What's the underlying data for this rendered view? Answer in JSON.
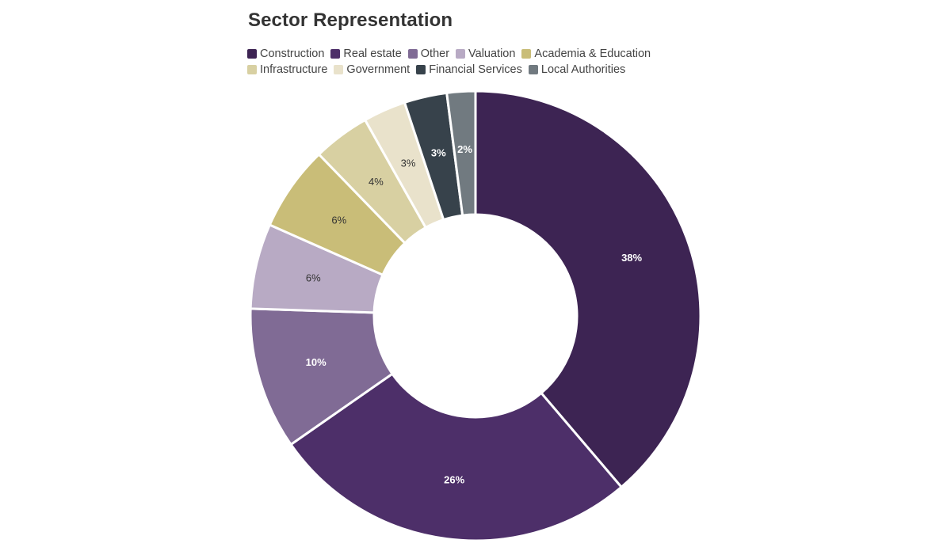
{
  "chart_data": {
    "type": "pie",
    "variant": "donut",
    "title": "Sector Representation",
    "legend_position": "top-left",
    "slices": [
      {
        "label": "Construction",
        "value": 38,
        "display": "38%",
        "color": "#3d2453",
        "text_color": "#ffffff",
        "bold": true
      },
      {
        "label": "Real estate",
        "value": 26,
        "display": "26%",
        "color": "#4d2f69",
        "text_color": "#ffffff",
        "bold": true
      },
      {
        "label": "Other",
        "value": 10,
        "display": "10%",
        "color": "#806b95",
        "text_color": "#ffffff",
        "bold": true
      },
      {
        "label": "Valuation",
        "value": 6,
        "display": "6%",
        "color": "#b8aac4",
        "text_color": "#333333",
        "bold": false
      },
      {
        "label": "Academia & Education",
        "value": 6,
        "display": "6%",
        "color": "#c9bd78",
        "text_color": "#333333",
        "bold": false
      },
      {
        "label": "Infrastructure",
        "value": 4,
        "display": "4%",
        "color": "#d8d0a2",
        "text_color": "#333333",
        "bold": false
      },
      {
        "label": "Government",
        "value": 3,
        "display": "3%",
        "color": "#e9e2cb",
        "text_color": "#333333",
        "bold": false
      },
      {
        "label": "Financial Services",
        "value": 3,
        "display": "3%",
        "color": "#37424b",
        "text_color": "#ffffff",
        "bold": true
      },
      {
        "label": "Local Authorities",
        "value": 2,
        "display": "2%",
        "color": "#717a80",
        "text_color": "#ffffff",
        "bold": true
      }
    ]
  }
}
